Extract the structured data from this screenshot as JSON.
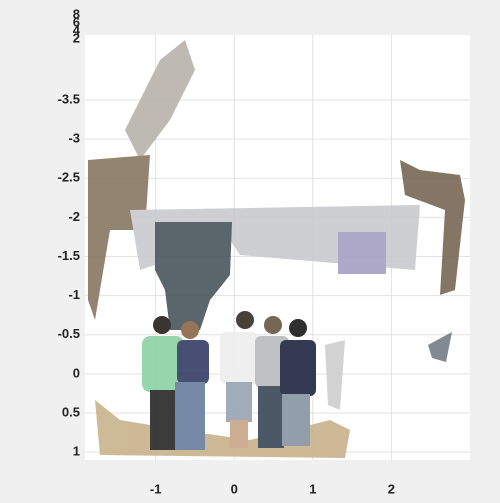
{
  "chart_data": {
    "type": "point-cloud",
    "xlim": [
      -1.9,
      3
    ],
    "xticks": [
      -1,
      0,
      1,
      2
    ],
    "ylim": [
      1.1,
      -4.33
    ],
    "yticks": [
      -3.5,
      -3,
      -2.5,
      -2,
      -1.5,
      -1,
      -0.5,
      0,
      0.5,
      1
    ],
    "zticks": [
      8,
      6,
      4,
      2
    ],
    "grid": true
  }
}
